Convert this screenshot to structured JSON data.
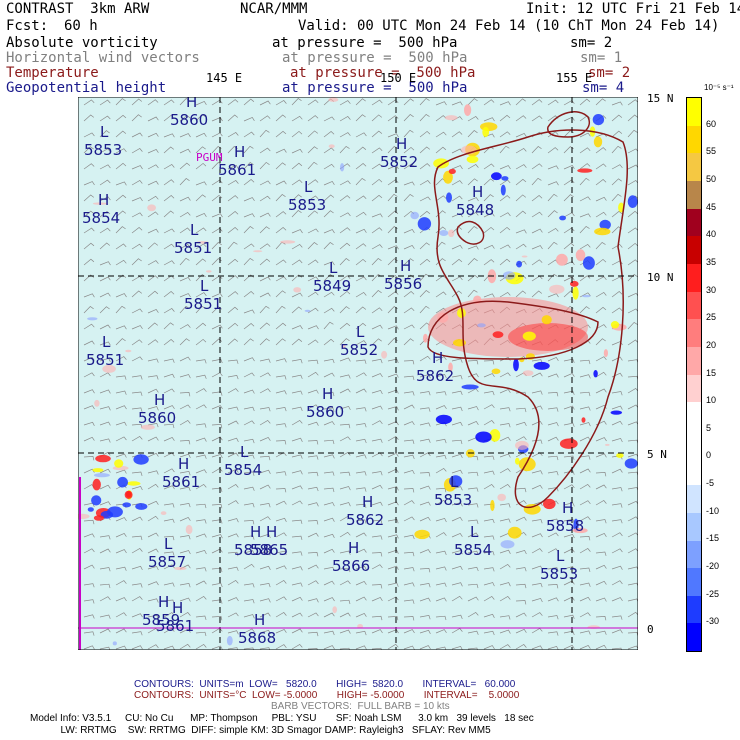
{
  "header": {
    "left_title": "CONTRAST  3km ARW",
    "center_title": "NCAR/MMM",
    "init": "Init: 12 UTC Fri 21 Feb 14",
    "fcst_label": "Fcst:",
    "fcst_value": "60 h",
    "valid": "Valid: 00 UTC Mon 24 Feb 14 (10 ChT Mon 24 Feb 14)"
  },
  "fields": [
    {
      "name": "Absolute vorticity",
      "desc": "at pressure =  500 hPa",
      "sm": "sm= 2",
      "color": "#000000"
    },
    {
      "name": "Horizontal wind vectors",
      "desc": "at pressure =  500 hPa",
      "sm": "sm= 1",
      "color": "#808080"
    },
    {
      "name": "Temperature",
      "desc": "at pressure =  500 hPa",
      "sm": "sm= 2",
      "color": "#8b1a1a"
    },
    {
      "name": "Geopotential height",
      "desc": "at pressure =  500 hPa",
      "sm": "sm= 4",
      "color": "#1a1a8b"
    }
  ],
  "axes": {
    "lon_labels": [
      "145 E",
      "150 E",
      "155 E"
    ],
    "lat_labels": [
      "15 N",
      "10 N",
      "5 N",
      "0"
    ]
  },
  "colorbar": {
    "unit": "10⁻⁵ s⁻¹",
    "labels": [
      "60",
      "55",
      "50",
      "45",
      "40",
      "35",
      "30",
      "25",
      "20",
      "15",
      "10",
      "5",
      "0",
      "-5",
      "-10",
      "-15",
      "-20",
      "-25",
      "-30"
    ],
    "colors": [
      "#ffff00",
      "#ffd700",
      "#f5c842",
      "#b8864a",
      "#a0001e",
      "#c80000",
      "#ff1e1e",
      "#ff5050",
      "#ff7d7d",
      "#ffa8a8",
      "#ffd0d0",
      "#ffffff",
      "#ffffff",
      "#ffffff",
      "#d0e4ff",
      "#a8c8ff",
      "#7da0ff",
      "#5078ff",
      "#1e3cff",
      "#0000ff"
    ]
  },
  "map_labels": {
    "highs": [
      {
        "t": "H",
        "v": "5860"
      },
      {
        "t": "H",
        "v": "5861"
      },
      {
        "t": "H",
        "v": "5854"
      },
      {
        "t": "H",
        "v": "5860"
      },
      {
        "t": "H",
        "v": "5861"
      },
      {
        "t": "H",
        "v": "5862"
      },
      {
        "t": "H",
        "v": "5866"
      },
      {
        "t": "H",
        "v": "5861"
      },
      {
        "t": "H",
        "v": "5859"
      },
      {
        "t": "H",
        "v": "5868"
      },
      {
        "t": "H",
        "v": "5858"
      },
      {
        "t": "H",
        "v": "5860"
      },
      {
        "t": "H",
        "v": "5856"
      },
      {
        "t": "H",
        "v": "5862"
      },
      {
        "t": "H",
        "v": "5858"
      },
      {
        "t": "H",
        "v": "5848"
      },
      {
        "t": "H",
        "v": "5852"
      },
      {
        "t": "H",
        "v": "5865"
      }
    ],
    "lows": [
      {
        "t": "L",
        "v": "5853"
      },
      {
        "t": "L",
        "v": "5851"
      },
      {
        "t": "L",
        "v": "5851"
      },
      {
        "t": "L",
        "v": "5849"
      },
      {
        "t": "L",
        "v": "5853"
      },
      {
        "t": "L",
        "v": "5852"
      },
      {
        "t": "L",
        "v": "5854"
      },
      {
        "t": "L",
        "v": "5853"
      },
      {
        "t": "L",
        "v": "5854"
      },
      {
        "t": "L",
        "v": "5853"
      },
      {
        "t": "L",
        "v": "5851"
      },
      {
        "t": "L",
        "v": "5857"
      }
    ],
    "pogm": "PGUM"
  },
  "footer": {
    "contours_blue": "CONTOURS:  UNITS=m  LOW=   5820.0       HIGH=  5820.0       INTERVAL=   60.000",
    "contours_red": "CONTOURS:  UNITS=°C  LOW= -5.0000       HIGH= -5.0000       INTERVAL=    5.0000",
    "barb": "BARB VECTORS:  FULL BARB = 10 kts",
    "model1": "Model Info: V3.5.1     CU: No Cu      MP: Thompson     PBL: YSU       SF: Noah LSM      3.0 km   39 levels   18 sec",
    "model2": "           LW: RRTMG    SW: RRTMG  DIFF: simple KM: 3D Smagor DAMP: Rayleigh3   SFLAY: Rev MM5"
  }
}
